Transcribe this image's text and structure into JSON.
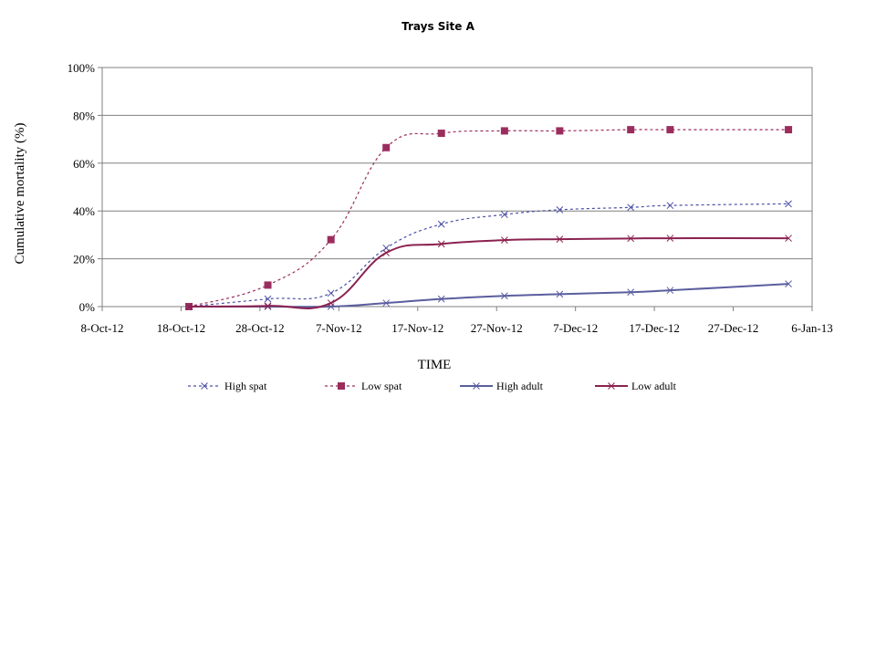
{
  "chart_data": {
    "type": "line",
    "title": "Trays Site A",
    "xlabel": "TIME",
    "ylabel": "Cumulative mortality (%)",
    "x_tick_labels": [
      "8-Oct-12",
      "18-Oct-12",
      "28-Oct-12",
      "7-Nov-12",
      "17-Nov-12",
      "27-Nov-12",
      "7-Dec-12",
      "17-Dec-12",
      "27-Dec-12",
      "6-Jan-13"
    ],
    "x_ticks": [
      "2012-10-08",
      "2012-10-18",
      "2012-10-28",
      "2012-11-07",
      "2012-11-17",
      "2012-11-27",
      "2012-12-07",
      "2012-12-17",
      "2012-12-27",
      "2013-01-06"
    ],
    "xlim": [
      "2012-10-08",
      "2013-01-06"
    ],
    "y_tick_labels": [
      "0%",
      "20%",
      "40%",
      "60%",
      "80%",
      "100%"
    ],
    "ylim": [
      0,
      100
    ],
    "grid": "horizontal",
    "legend_position": "bottom",
    "x": [
      "2012-10-19",
      "2012-10-29",
      "2012-11-06",
      "2012-11-13",
      "2012-11-20",
      "2012-11-28",
      "2012-12-05",
      "2012-12-14",
      "2012-12-19",
      "2013-01-03"
    ],
    "series": [
      {
        "name": "High spat",
        "color": "#4b4fa6",
        "line": "dashed",
        "marker": "x",
        "values": [
          0,
          3.2,
          5.6,
          24.5,
          34.5,
          38.5,
          40.5,
          41.5,
          42.3,
          43
        ]
      },
      {
        "name": "Low spat",
        "color": "#9b2d5e",
        "line": "dashed",
        "marker": "square",
        "values": [
          0,
          9,
          28,
          66.5,
          72.5,
          73.5,
          73.5,
          74,
          74,
          74
        ]
      },
      {
        "name": "High adult",
        "color": "#5a5e9e",
        "line": "solid",
        "marker": "x",
        "values": [
          0,
          0,
          0,
          1.5,
          3.2,
          4.5,
          5.2,
          6,
          6.8,
          9.5
        ]
      },
      {
        "name": "Low adult",
        "color": "#8b2250",
        "line": "solid",
        "marker": "x",
        "values": [
          0,
          0.3,
          1.5,
          22.5,
          26.2,
          27.8,
          28.2,
          28.5,
          28.6,
          28.6
        ]
      }
    ]
  }
}
